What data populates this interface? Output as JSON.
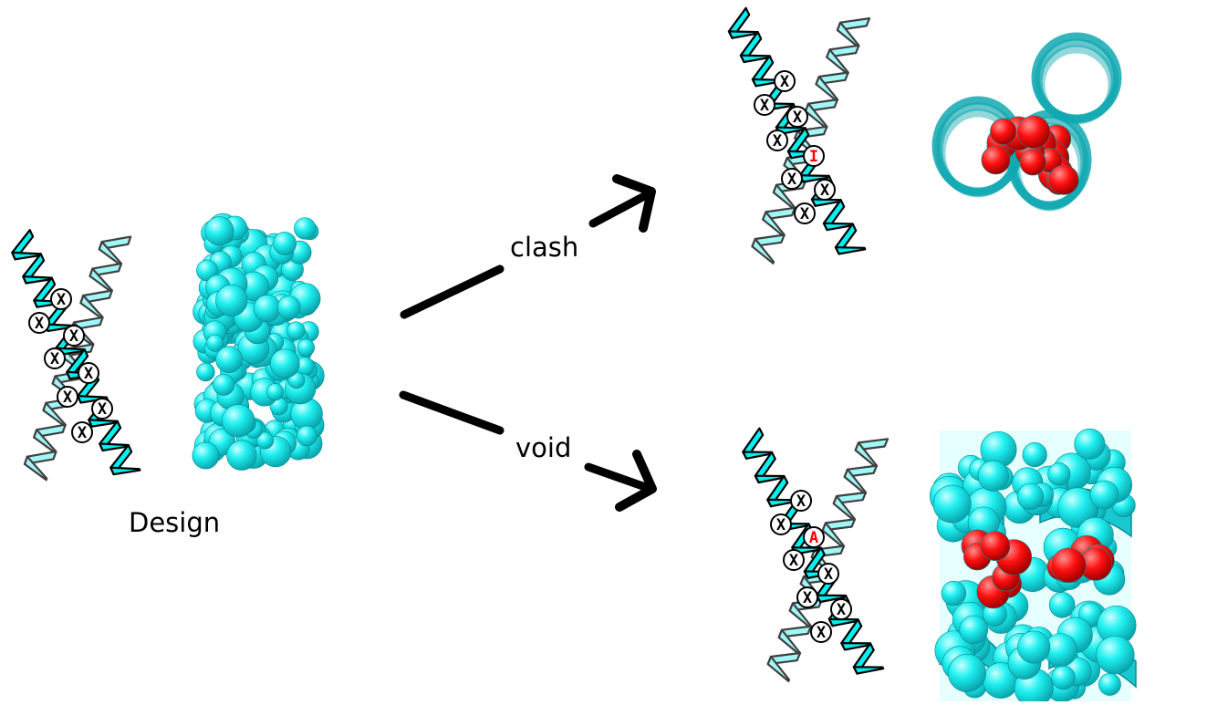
{
  "labels": {
    "design": "Design",
    "clash": "clash",
    "void": "void"
  },
  "mutations": {
    "clash_letter": "I",
    "void_letter": "A"
  },
  "position_marker": "X",
  "colors": {
    "helix": "#00f0f0",
    "helix_light": "#7ff5f5",
    "dark_cyan": "#10b8c0",
    "mutation": "#ff0000",
    "outline": "#000000"
  }
}
